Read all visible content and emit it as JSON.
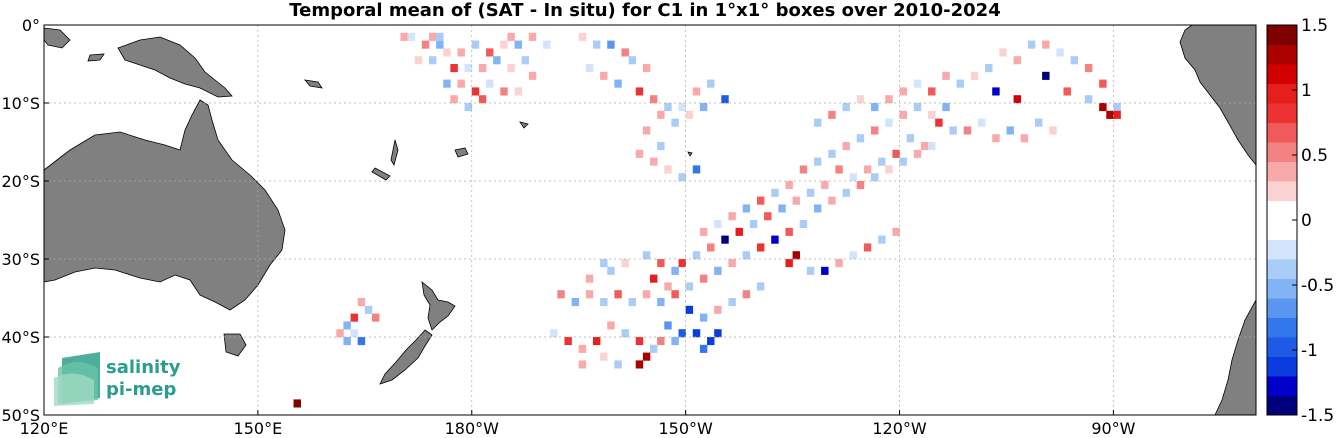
{
  "title": "Temporal mean of (SAT - In situ) for C1 in 1°x1° boxes over 2010-2024",
  "map": {
    "lon_range": [
      120,
      290
    ],
    "lat_range": [
      -50,
      0
    ],
    "x_ticks": [
      {
        "lon": 120,
        "label": "120°E"
      },
      {
        "lon": 150,
        "label": "150°E"
      },
      {
        "lon": 180,
        "label": "180°W"
      },
      {
        "lon": 210,
        "label": "150°W"
      },
      {
        "lon": 240,
        "label": "120°W"
      },
      {
        "lon": 270,
        "label": "90°W"
      }
    ],
    "y_ticks": [
      {
        "lat": 0,
        "label": "0°"
      },
      {
        "lat": -10,
        "label": "10°S"
      },
      {
        "lat": -20,
        "label": "20°S"
      },
      {
        "lat": -30,
        "label": "30°S"
      },
      {
        "lat": -40,
        "label": "40°S"
      },
      {
        "lat": -50,
        "label": "50°S"
      }
    ],
    "grid": true,
    "land_color": "#808080",
    "ocean_color": "#ffffff"
  },
  "colorbar": {
    "range": [
      -1.5,
      1.5
    ],
    "ticks": [
      "1.5",
      "1",
      "0.5",
      "0",
      "-0.5",
      "-1",
      "-1.5"
    ],
    "colors": [
      "#00007f",
      "#0000c8",
      "#0a3ce0",
      "#1e5ae6",
      "#3278ec",
      "#5a96f0",
      "#82b4f5",
      "#aacdf8",
      "#d2e4fb",
      "#ffffff",
      "#ffffff",
      "#fbd2d2",
      "#f8aaaa",
      "#f58282",
      "#f05a5a",
      "#ec3232",
      "#e61e1e",
      "#d20000",
      "#aa0000",
      "#7f0000"
    ]
  },
  "logo": {
    "line1": "salinity",
    "line2": "pi-mep"
  },
  "chart_data": {
    "type": "heatmap",
    "title": "Temporal mean of (SAT - In situ) for C1 in 1°x1° boxes over 2010-2024",
    "value_range": [
      -1.5,
      1.5
    ],
    "cells": [
      [
        170,
        -1,
        0.3
      ],
      [
        171,
        -1,
        -0.2
      ],
      [
        173,
        -2,
        0.5
      ],
      [
        175,
        -2,
        -0.6
      ],
      [
        176,
        -3,
        0.2
      ],
      [
        178,
        -3,
        0.4
      ],
      [
        180,
        -2,
        -0.3
      ],
      [
        182,
        -3,
        0.6
      ],
      [
        184,
        -2,
        0.2
      ],
      [
        172,
        -4,
        0.2
      ],
      [
        174,
        -4,
        -0.4
      ],
      [
        177,
        -5,
        0.8
      ],
      [
        179,
        -5,
        -0.2
      ],
      [
        181,
        -5,
        0.3
      ],
      [
        183,
        -4,
        -0.5
      ],
      [
        185,
        -5,
        0.2
      ],
      [
        187,
        -4,
        -0.3
      ],
      [
        188,
        -6,
        0.4
      ],
      [
        176,
        -7,
        -0.6
      ],
      [
        178,
        -7,
        0.3
      ],
      [
        180,
        -8,
        0.9
      ],
      [
        182,
        -7,
        -0.2
      ],
      [
        184,
        -8,
        0.5
      ],
      [
        186,
        -8,
        0.2
      ],
      [
        177,
        -9,
        0.3
      ],
      [
        179,
        -10,
        -0.3
      ],
      [
        181,
        -9,
        0.6
      ],
      [
        195,
        -1,
        0.2
      ],
      [
        197,
        -2,
        -0.3
      ],
      [
        199,
        -2,
        -0.7
      ],
      [
        201,
        -3,
        0.5
      ],
      [
        202,
        -4,
        -0.4
      ],
      [
        204,
        -5,
        0.3
      ],
      [
        196,
        -5,
        -0.2
      ],
      [
        198,
        -6,
        0.4
      ],
      [
        200,
        -7,
        -0.5
      ],
      [
        203,
        -8,
        0.9
      ],
      [
        205,
        -9,
        0.5
      ],
      [
        207,
        -10,
        -0.3
      ],
      [
        209,
        -10,
        -0.2
      ],
      [
        206,
        -11,
        0.4
      ],
      [
        208,
        -12,
        -0.4
      ],
      [
        210,
        -11,
        0.2
      ],
      [
        212,
        -10,
        -0.6
      ],
      [
        204,
        -13,
        0.3
      ],
      [
        206,
        -15,
        -0.3
      ],
      [
        205,
        -17,
        0.4
      ],
      [
        207,
        -18,
        0.2
      ],
      [
        209,
        -19,
        -0.4
      ],
      [
        211,
        -18,
        -0.8
      ],
      [
        203,
        -16,
        0.3
      ],
      [
        213,
        -7,
        -0.4
      ],
      [
        211,
        -8,
        0.3
      ],
      [
        215,
        -9,
        -1.0
      ],
      [
        258,
        -2,
        -0.4
      ],
      [
        260,
        -2,
        0.3
      ],
      [
        262,
        -3,
        -0.2
      ],
      [
        256,
        -4,
        0.4
      ],
      [
        254,
        -3,
        0.2
      ],
      [
        264,
        -4,
        -0.3
      ],
      [
        252,
        -5,
        -0.4
      ],
      [
        250,
        -6,
        0.2
      ],
      [
        266,
        -5,
        0.5
      ],
      [
        246,
        -6,
        0.3
      ],
      [
        248,
        -7,
        -0.3
      ],
      [
        244,
        -8,
        0.6
      ],
      [
        242,
        -7,
        -0.2
      ],
      [
        240,
        -8,
        0.4
      ],
      [
        238,
        -9,
        0.3
      ],
      [
        236,
        -10,
        -0.5
      ],
      [
        234,
        -9,
        0.2
      ],
      [
        232,
        -10,
        -0.3
      ],
      [
        230,
        -11,
        0.5
      ],
      [
        228,
        -12,
        -0.3
      ],
      [
        253,
        -8,
        -1.3
      ],
      [
        256,
        -9,
        1.1
      ],
      [
        260,
        -6,
        -1.4
      ],
      [
        263,
        -8,
        0.7
      ],
      [
        266,
        -9,
        -0.3
      ],
      [
        268,
        -7,
        0.6
      ],
      [
        270,
        -10,
        -0.4
      ],
      [
        245,
        -12,
        0.8
      ],
      [
        247,
        -13,
        -0.3
      ],
      [
        249,
        -13,
        0.5
      ],
      [
        251,
        -12,
        -0.2
      ],
      [
        253,
        -14,
        0.4
      ],
      [
        255,
        -13,
        -0.5
      ],
      [
        257,
        -14,
        0.3
      ],
      [
        259,
        -12,
        -0.4
      ],
      [
        261,
        -13,
        0.2
      ],
      [
        241,
        -14,
        -0.3
      ],
      [
        243,
        -15,
        0.4
      ],
      [
        239,
        -16,
        0.6
      ],
      [
        237,
        -17,
        -0.4
      ],
      [
        235,
        -18,
        0.3
      ],
      [
        233,
        -19,
        -0.2
      ],
      [
        231,
        -18,
        0.5
      ],
      [
        229,
        -20,
        0.3
      ],
      [
        227,
        -21,
        -0.3
      ],
      [
        225,
        -22,
        0.4
      ],
      [
        223,
        -23,
        -0.5
      ],
      [
        221,
        -24,
        0.6
      ],
      [
        219,
        -25,
        -0.3
      ],
      [
        217,
        -26,
        1.0
      ],
      [
        215,
        -27,
        -1.4
      ],
      [
        213,
        -28,
        0.5
      ],
      [
        211,
        -29,
        -0.4
      ],
      [
        209,
        -30,
        0.8
      ],
      [
        230,
        -16,
        -0.4
      ],
      [
        232,
        -15,
        0.3
      ],
      [
        234,
        -14,
        -0.3
      ],
      [
        236,
        -13,
        0.5
      ],
      [
        238,
        -12,
        -0.2
      ],
      [
        240,
        -11,
        0.3
      ],
      [
        242,
        -10,
        -0.4
      ],
      [
        244,
        -11,
        0.2
      ],
      [
        246,
        -10,
        -0.6
      ],
      [
        226,
        -18,
        0.5
      ],
      [
        228,
        -17,
        -0.3
      ],
      [
        224,
        -20,
        0.3
      ],
      [
        222,
        -21,
        -0.4
      ],
      [
        220,
        -22,
        0.6
      ],
      [
        218,
        -23,
        -0.5
      ],
      [
        216,
        -24,
        0.3
      ],
      [
        214,
        -25,
        -0.2
      ],
      [
        212,
        -26,
        0.4
      ],
      [
        228,
        -23,
        -0.6
      ],
      [
        230,
        -22,
        0.4
      ],
      [
        232,
        -21,
        -0.3
      ],
      [
        234,
        -20,
        0.5
      ],
      [
        236,
        -19,
        -0.4
      ],
      [
        238,
        -18,
        0.2
      ],
      [
        240,
        -17,
        -0.3
      ],
      [
        242,
        -16,
        0.4
      ],
      [
        244,
        -15,
        -0.2
      ],
      [
        224,
        -26,
        0.6
      ],
      [
        226,
        -25,
        -0.4
      ],
      [
        222,
        -27,
        -1.3
      ],
      [
        220,
        -28,
        0.9
      ],
      [
        218,
        -29,
        -0.3
      ],
      [
        216,
        -30,
        0.4
      ],
      [
        214,
        -31,
        -0.6
      ],
      [
        212,
        -32,
        0.5
      ],
      [
        210,
        -33,
        -0.4
      ],
      [
        225,
        -29,
        1.2
      ],
      [
        224,
        -30,
        1.0
      ],
      [
        227,
        -31,
        -0.3
      ],
      [
        229,
        -31,
        -1.3
      ],
      [
        231,
        -30,
        0.4
      ],
      [
        233,
        -29,
        -0.2
      ],
      [
        235,
        -28,
        0.6
      ],
      [
        237,
        -27,
        -0.3
      ],
      [
        239,
        -26,
        0.4
      ],
      [
        208,
        -34,
        0.6
      ],
      [
        206,
        -35,
        -0.5
      ],
      [
        204,
        -34,
        0.4
      ],
      [
        202,
        -35,
        -0.3
      ],
      [
        200,
        -34,
        0.7
      ],
      [
        198,
        -35,
        -0.4
      ],
      [
        196,
        -34,
        0.3
      ],
      [
        194,
        -35,
        -0.6
      ],
      [
        192,
        -34,
        0.5
      ],
      [
        210,
        -36,
        -1.2
      ],
      [
        212,
        -37,
        -0.6
      ],
      [
        214,
        -36,
        0.3
      ],
      [
        216,
        -35,
        -0.4
      ],
      [
        218,
        -34,
        0.5
      ],
      [
        220,
        -33,
        -0.3
      ],
      [
        207,
        -38,
        -0.7
      ],
      [
        209,
        -39,
        -0.9
      ],
      [
        211,
        -39,
        -1.1
      ],
      [
        199,
        -38,
        0.4
      ],
      [
        201,
        -39,
        -0.3
      ],
      [
        203,
        -40,
        0.9
      ],
      [
        205,
        -41,
        -0.4
      ],
      [
        197,
        -40,
        1.0
      ],
      [
        195,
        -41,
        0.3
      ],
      [
        193,
        -40,
        0.8
      ],
      [
        191,
        -39,
        -0.2
      ],
      [
        204,
        -42,
        1.2
      ],
      [
        203,
        -43,
        1.3
      ],
      [
        200,
        -43,
        -0.3
      ],
      [
        198,
        -42,
        0.2
      ],
      [
        195,
        -43,
        0.4
      ],
      [
        206,
        -40,
        0.5
      ],
      [
        208,
        -40,
        -0.5
      ],
      [
        212,
        -41,
        -0.8
      ],
      [
        213,
        -40,
        -1.1
      ],
      [
        214,
        -39,
        -1.2
      ],
      [
        198,
        -30,
        -0.3
      ],
      [
        199,
        -31,
        -0.4
      ],
      [
        201,
        -30,
        0.2
      ],
      [
        196,
        -32,
        0.3
      ],
      [
        204,
        -29,
        -0.3
      ],
      [
        206,
        -30,
        0.6
      ],
      [
        208,
        -31,
        -0.5
      ],
      [
        205,
        -32,
        1.0
      ],
      [
        207,
        -33,
        0.4
      ],
      [
        164,
        -35,
        0.4
      ],
      [
        165,
        -36,
        -0.3
      ],
      [
        163,
        -37,
        0.9
      ],
      [
        162,
        -38,
        -0.5
      ],
      [
        161,
        -39,
        0.3
      ],
      [
        163,
        -39,
        -0.2
      ],
      [
        166,
        -37,
        0.5
      ],
      [
        162,
        -40,
        -0.6
      ],
      [
        164,
        -40,
        -0.8
      ],
      [
        174,
        -1,
        0.3
      ],
      [
        175,
        -1,
        -0.3
      ],
      [
        185,
        -1,
        0.4
      ],
      [
        186,
        -2,
        -0.5
      ],
      [
        188,
        -1,
        0.3
      ],
      [
        190,
        -2,
        -0.2
      ],
      [
        268,
        -10,
        1.3
      ],
      [
        269,
        -11,
        1.2
      ],
      [
        270,
        -11,
        1.0
      ],
      [
        155,
        -48,
        1.4
      ]
    ]
  }
}
